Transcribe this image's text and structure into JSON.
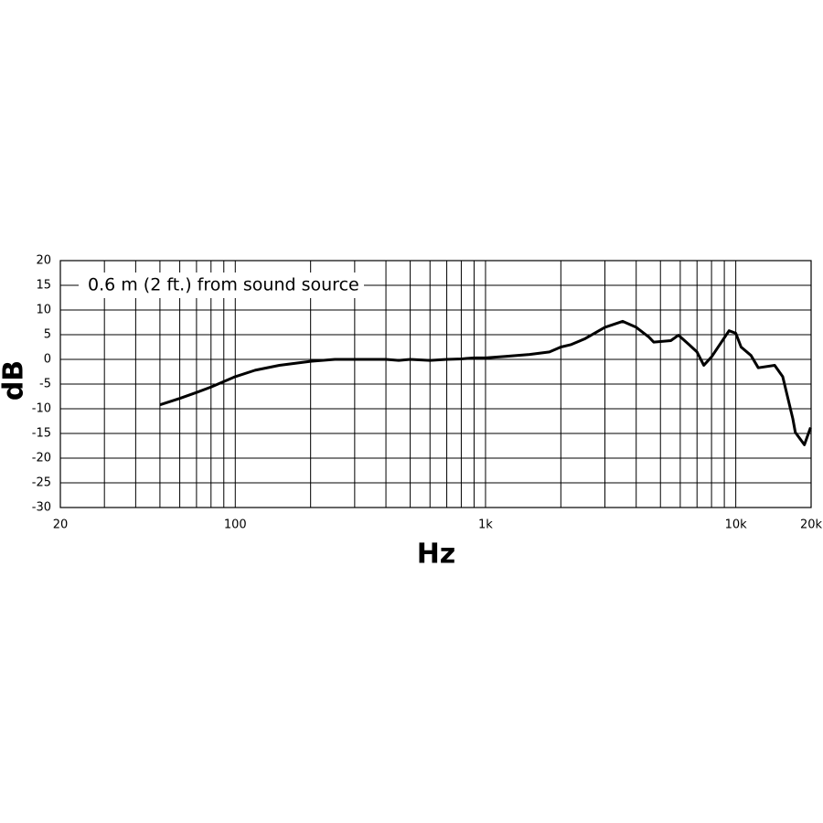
{
  "chart_data": {
    "type": "line",
    "annotation": "0.6 m (2 ft.) from sound source",
    "xlabel": "Hz",
    "ylabel": "dB",
    "xscale": "log",
    "grid": true,
    "color": "#000000",
    "xlim": [
      20,
      20000
    ],
    "ylim": [
      -30,
      20
    ],
    "xticks": [
      20,
      100,
      {
        "value": 1000,
        "label": "1k"
      },
      {
        "value": 10000,
        "label": "10k"
      },
      {
        "value": 20000,
        "label": "20k"
      }
    ],
    "xgrid_minor": [
      30,
      40,
      50,
      60,
      70,
      80,
      90,
      200,
      300,
      400,
      500,
      600,
      700,
      800,
      900,
      2000,
      3000,
      4000,
      5000,
      6000,
      7000,
      8000,
      9000
    ],
    "yticks": [
      20,
      15,
      10,
      5,
      0,
      -5,
      -10,
      -15,
      -20,
      -25,
      -30
    ],
    "x": [
      50,
      60,
      70,
      80,
      100,
      120,
      150,
      200,
      250,
      300,
      400,
      450,
      500,
      600,
      700,
      800,
      900,
      1000,
      1200,
      1500,
      1800,
      2000,
      2200,
      2500,
      3000,
      3530,
      4000,
      4500,
      4700,
      5500,
      5900,
      6500,
      7000,
      7450,
      8000,
      9400,
      10000,
      10500,
      11500,
      12300,
      14300,
      15400,
      16900,
      17300,
      18800,
      19900
    ],
    "values": [
      -9.2,
      -7.9,
      -6.7,
      -5.6,
      -3.5,
      -2.2,
      -1.2,
      -0.4,
      0,
      0,
      0,
      -0.2,
      0,
      -0.2,
      0,
      0.1,
      0.3,
      0.3,
      0.6,
      1,
      1.5,
      2.5,
      3,
      4.2,
      6.5,
      7.7,
      6.5,
      4.5,
      3.5,
      3.8,
      4.9,
      3,
      1.5,
      -1.2,
      0.5,
      5.8,
      5.3,
      2.5,
      0.8,
      -1.7,
      -1.2,
      -3.5,
      -12,
      -14.8,
      -17.3,
      -13.8
    ]
  }
}
